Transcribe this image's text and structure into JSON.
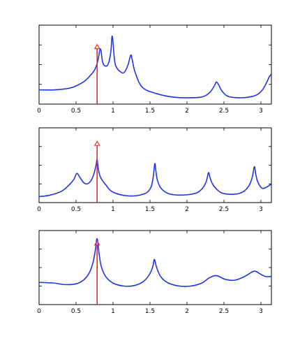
{
  "chart_data": [
    {
      "type": "line",
      "xlim": [
        0,
        3.1416
      ],
      "ylim": [
        0,
        1
      ],
      "x_ticks": [
        "0",
        "0.5",
        "1",
        "1.5",
        "2",
        "2.5",
        "3"
      ],
      "grid": false,
      "marker": {
        "x": 0.785,
        "y": 0.755,
        "color": "#e8262a",
        "style": "stem with hollow triangle head"
      },
      "series": [
        {
          "color": "#2233e6",
          "x": [
            0,
            0.2,
            0.4,
            0.5,
            0.6,
            0.65,
            0.7,
            0.75,
            0.78,
            0.8,
            0.83,
            0.86,
            0.9,
            0.94,
            0.97,
            0.99,
            1.02,
            1.05,
            1.1,
            1.15,
            1.2,
            1.24,
            1.26,
            1.3,
            1.4,
            1.6,
            1.8,
            2.0,
            2.2,
            2.3,
            2.35,
            2.38,
            2.4,
            2.43,
            2.47,
            2.55,
            2.7,
            2.85,
            2.95,
            3.02,
            3.07,
            3.11,
            3.14
          ],
          "y": [
            0.18,
            0.18,
            0.2,
            0.23,
            0.28,
            0.32,
            0.37,
            0.43,
            0.5,
            0.57,
            0.7,
            0.53,
            0.48,
            0.52,
            0.66,
            0.86,
            0.56,
            0.46,
            0.41,
            0.4,
            0.49,
            0.62,
            0.56,
            0.4,
            0.21,
            0.13,
            0.09,
            0.08,
            0.09,
            0.14,
            0.2,
            0.25,
            0.28,
            0.24,
            0.17,
            0.1,
            0.08,
            0.09,
            0.12,
            0.18,
            0.26,
            0.34,
            0.38
          ]
        }
      ]
    },
    {
      "type": "line",
      "xlim": [
        0,
        3.1416
      ],
      "ylim": [
        0,
        1
      ],
      "x_ticks": [
        "0",
        "0.5",
        "1",
        "1.5",
        "2",
        "2.5",
        "3"
      ],
      "grid": false,
      "marker": {
        "x": 0.785,
        "y": 0.82,
        "color": "#e8262a",
        "style": "stem with hollow triangle head"
      },
      "series": [
        {
          "color": "#2233e6",
          "x": [
            0,
            0.15,
            0.3,
            0.4,
            0.47,
            0.51,
            0.55,
            0.6,
            0.65,
            0.7,
            0.74,
            0.77,
            0.785,
            0.8,
            0.83,
            0.9,
            1.0,
            1.2,
            1.4,
            1.5,
            1.54,
            1.565,
            1.58,
            1.6,
            1.65,
            1.75,
            1.9,
            2.1,
            2.2,
            2.26,
            2.29,
            2.31,
            2.34,
            2.4,
            2.5,
            2.7,
            2.82,
            2.88,
            2.91,
            2.93,
            2.96,
            3.02,
            3.1,
            3.14
          ],
          "y": [
            0.08,
            0.1,
            0.15,
            0.23,
            0.31,
            0.39,
            0.34,
            0.27,
            0.25,
            0.29,
            0.38,
            0.5,
            0.58,
            0.46,
            0.34,
            0.24,
            0.14,
            0.09,
            0.11,
            0.18,
            0.32,
            0.52,
            0.42,
            0.3,
            0.19,
            0.12,
            0.1,
            0.12,
            0.18,
            0.28,
            0.4,
            0.34,
            0.26,
            0.18,
            0.12,
            0.12,
            0.2,
            0.33,
            0.48,
            0.38,
            0.27,
            0.19,
            0.22,
            0.25
          ]
        }
      ]
    },
    {
      "type": "line",
      "xlim": [
        0,
        3.1416
      ],
      "ylim": [
        0,
        1
      ],
      "x_ticks": [
        "0",
        "0.5",
        "1",
        "1.5",
        "2",
        "2.5",
        "3"
      ],
      "grid": false,
      "marker": {
        "x": 0.785,
        "y": 0.86,
        "color": "#e8262a",
        "style": "stem with hollow triangle head"
      },
      "series": [
        {
          "color": "#2233e6",
          "x": [
            0,
            0.2,
            0.35,
            0.5,
            0.6,
            0.68,
            0.73,
            0.76,
            0.785,
            0.81,
            0.84,
            0.9,
            1.0,
            1.15,
            1.3,
            1.42,
            1.5,
            1.54,
            1.56,
            1.59,
            1.65,
            1.75,
            1.9,
            2.05,
            2.2,
            2.3,
            2.4,
            2.52,
            2.65,
            2.78,
            2.88,
            2.93,
            2.98,
            3.06,
            3.14
          ],
          "y": [
            0.3,
            0.29,
            0.27,
            0.28,
            0.33,
            0.43,
            0.57,
            0.73,
            0.89,
            0.7,
            0.52,
            0.38,
            0.29,
            0.25,
            0.26,
            0.32,
            0.42,
            0.52,
            0.61,
            0.5,
            0.37,
            0.29,
            0.25,
            0.25,
            0.29,
            0.36,
            0.39,
            0.34,
            0.33,
            0.38,
            0.44,
            0.45,
            0.42,
            0.38,
            0.38
          ]
        }
      ]
    }
  ]
}
